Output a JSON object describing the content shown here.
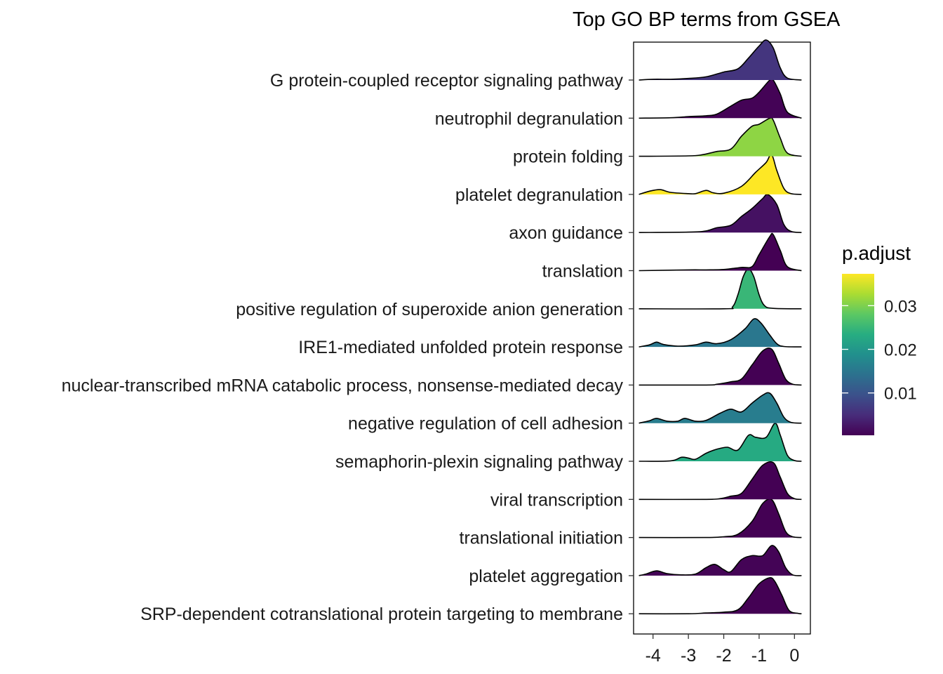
{
  "chart_data": {
    "type": "ridgeline",
    "title": "Top GO BP terms from GSEA",
    "xlabel": "",
    "ylabel": "",
    "xlim": [
      -4.55,
      0.45
    ],
    "x_ticks": [
      -4,
      -3,
      -2,
      -1,
      0
    ],
    "x_tick_labels": [
      "-4",
      "-3",
      "-2",
      "-1",
      "0"
    ],
    "legend": {
      "title": "p.adjust",
      "position": "right",
      "colormap": "viridis",
      "range": [
        0.0003,
        0.0373
      ],
      "ticks": [
        0.01,
        0.02,
        0.03
      ],
      "tick_labels": [
        "0.01",
        "0.02",
        "0.03"
      ]
    },
    "series": [
      {
        "name": "G protein-coupled receptor signaling pathway",
        "p_adjust": 0.006,
        "profile": [
          [
            -4.4,
            0
          ],
          [
            -4,
            0.02
          ],
          [
            -3.5,
            0.02
          ],
          [
            -3,
            0.04
          ],
          [
            -2.5,
            0.08
          ],
          [
            -2,
            0.2
          ],
          [
            -1.6,
            0.28
          ],
          [
            -1.3,
            0.55
          ],
          [
            -1,
            0.85
          ],
          [
            -0.8,
            1.0
          ],
          [
            -0.6,
            0.8
          ],
          [
            -0.4,
            0.3
          ],
          [
            -0.2,
            0.05
          ],
          [
            0.2,
            0
          ]
        ]
      },
      {
        "name": "neutrophil degranulation",
        "p_adjust": 0.0005,
        "profile": [
          [
            -4.4,
            0
          ],
          [
            -3.5,
            0.01
          ],
          [
            -3,
            0.04
          ],
          [
            -2.5,
            0.06
          ],
          [
            -2.2,
            0.1
          ],
          [
            -1.8,
            0.3
          ],
          [
            -1.5,
            0.45
          ],
          [
            -1.2,
            0.5
          ],
          [
            -1,
            0.65
          ],
          [
            -0.7,
            0.95
          ],
          [
            -0.6,
            0.95
          ],
          [
            -0.4,
            0.6
          ],
          [
            -0.2,
            0.15
          ],
          [
            0.2,
            0
          ]
        ]
      },
      {
        "name": "protein folding",
        "p_adjust": 0.031,
        "profile": [
          [
            -4.4,
            0
          ],
          [
            -3,
            0.01
          ],
          [
            -2.6,
            0.04
          ],
          [
            -2.2,
            0.12
          ],
          [
            -1.8,
            0.18
          ],
          [
            -1.5,
            0.5
          ],
          [
            -1.2,
            0.75
          ],
          [
            -1,
            0.8
          ],
          [
            -0.7,
            0.95
          ],
          [
            -0.6,
            0.9
          ],
          [
            -0.4,
            0.45
          ],
          [
            -0.2,
            0.08
          ],
          [
            0.2,
            0
          ]
        ]
      },
      {
        "name": "platelet degranulation",
        "p_adjust": 0.0373,
        "profile": [
          [
            -4.4,
            0
          ],
          [
            -4.1,
            0.08
          ],
          [
            -3.8,
            0.12
          ],
          [
            -3.5,
            0.05
          ],
          [
            -3,
            0.02
          ],
          [
            -2.8,
            0.02
          ],
          [
            -2.5,
            0.1
          ],
          [
            -2.3,
            0.04
          ],
          [
            -2,
            0.03
          ],
          [
            -1.5,
            0.2
          ],
          [
            -1.1,
            0.55
          ],
          [
            -0.8,
            0.8
          ],
          [
            -0.65,
            1.0
          ],
          [
            -0.5,
            0.6
          ],
          [
            -0.3,
            0.15
          ],
          [
            -0.1,
            0.02
          ],
          [
            0.2,
            0
          ]
        ]
      },
      {
        "name": "axon guidance",
        "p_adjust": 0.002,
        "profile": [
          [
            -4.4,
            0
          ],
          [
            -3,
            0.01
          ],
          [
            -2.5,
            0.04
          ],
          [
            -2.2,
            0.12
          ],
          [
            -1.8,
            0.18
          ],
          [
            -1.5,
            0.4
          ],
          [
            -1.2,
            0.6
          ],
          [
            -0.9,
            0.85
          ],
          [
            -0.75,
            0.95
          ],
          [
            -0.5,
            0.7
          ],
          [
            -0.3,
            0.2
          ],
          [
            -0.1,
            0.03
          ],
          [
            0.2,
            0
          ]
        ]
      },
      {
        "name": "translation",
        "p_adjust": 0.0003,
        "profile": [
          [
            -4.4,
            0
          ],
          [
            -3,
            0.02
          ],
          [
            -2.5,
            0.02
          ],
          [
            -2,
            0.03
          ],
          [
            -1.5,
            0.08
          ],
          [
            -1.2,
            0.1
          ],
          [
            -1,
            0.4
          ],
          [
            -0.7,
            0.85
          ],
          [
            -0.6,
            0.9
          ],
          [
            -0.4,
            0.5
          ],
          [
            -0.2,
            0.1
          ],
          [
            0.2,
            0
          ]
        ]
      },
      {
        "name": "positive regulation of superoxide anion generation",
        "p_adjust": 0.025,
        "profile": [
          [
            -4.4,
            0
          ],
          [
            -2,
            0
          ],
          [
            -1.75,
            0.05
          ],
          [
            -1.6,
            0.35
          ],
          [
            -1.45,
            0.8
          ],
          [
            -1.3,
            1.0
          ],
          [
            -1.15,
            0.8
          ],
          [
            -1.0,
            0.35
          ],
          [
            -0.85,
            0.08
          ],
          [
            -0.6,
            0.01
          ],
          [
            0.2,
            0
          ]
        ]
      },
      {
        "name": "IRE1-mediated unfolded protein response",
        "p_adjust": 0.015,
        "profile": [
          [
            -4.4,
            0
          ],
          [
            -4.1,
            0.05
          ],
          [
            -3.9,
            0.12
          ],
          [
            -3.7,
            0.06
          ],
          [
            -3.3,
            0.02
          ],
          [
            -2.8,
            0.05
          ],
          [
            -2.5,
            0.12
          ],
          [
            -2.2,
            0.08
          ],
          [
            -1.8,
            0.18
          ],
          [
            -1.4,
            0.45
          ],
          [
            -1.15,
            0.7
          ],
          [
            -0.95,
            0.6
          ],
          [
            -0.7,
            0.3
          ],
          [
            -0.5,
            0.08
          ],
          [
            -0.3,
            0.01
          ],
          [
            0.2,
            0
          ]
        ]
      },
      {
        "name": "nuclear-transcribed mRNA catabolic process, nonsense-mediated decay",
        "p_adjust": 0.0003,
        "profile": [
          [
            -4.4,
            0
          ],
          [
            -2.5,
            0
          ],
          [
            -2.2,
            0.02
          ],
          [
            -1.8,
            0.08
          ],
          [
            -1.5,
            0.15
          ],
          [
            -1.2,
            0.5
          ],
          [
            -0.9,
            0.85
          ],
          [
            -0.65,
            0.9
          ],
          [
            -0.45,
            0.55
          ],
          [
            -0.25,
            0.15
          ],
          [
            -0.05,
            0.02
          ],
          [
            0.2,
            0
          ]
        ]
      },
      {
        "name": "negative regulation of cell adhesion",
        "p_adjust": 0.016,
        "profile": [
          [
            -4.4,
            0
          ],
          [
            -4.1,
            0.06
          ],
          [
            -3.9,
            0.12
          ],
          [
            -3.6,
            0.05
          ],
          [
            -3.3,
            0.05
          ],
          [
            -3.1,
            0.12
          ],
          [
            -2.8,
            0.05
          ],
          [
            -2.5,
            0.07
          ],
          [
            -2.1,
            0.25
          ],
          [
            -1.8,
            0.35
          ],
          [
            -1.5,
            0.28
          ],
          [
            -1.2,
            0.5
          ],
          [
            -0.9,
            0.7
          ],
          [
            -0.7,
            0.75
          ],
          [
            -0.5,
            0.5
          ],
          [
            -0.3,
            0.15
          ],
          [
            -0.1,
            0.02
          ],
          [
            0.2,
            0
          ]
        ]
      },
      {
        "name": "semaphorin-plexin signaling pathway",
        "p_adjust": 0.023,
        "profile": [
          [
            -4.4,
            0
          ],
          [
            -3.5,
            0.01
          ],
          [
            -3.2,
            0.1
          ],
          [
            -3,
            0.08
          ],
          [
            -2.8,
            0.05
          ],
          [
            -2.5,
            0.2
          ],
          [
            -2.2,
            0.3
          ],
          [
            -1.9,
            0.35
          ],
          [
            -1.6,
            0.28
          ],
          [
            -1.3,
            0.65
          ],
          [
            -1.1,
            0.6
          ],
          [
            -0.8,
            0.6
          ],
          [
            -0.55,
            0.95
          ],
          [
            -0.4,
            0.65
          ],
          [
            -0.2,
            0.15
          ],
          [
            0,
            0.02
          ],
          [
            0.2,
            0
          ]
        ]
      },
      {
        "name": "viral transcription",
        "p_adjust": 0.0003,
        "profile": [
          [
            -4.4,
            0
          ],
          [
            -2.5,
            0
          ],
          [
            -2.1,
            0.02
          ],
          [
            -1.8,
            0.08
          ],
          [
            -1.5,
            0.15
          ],
          [
            -1.2,
            0.5
          ],
          [
            -0.9,
            0.85
          ],
          [
            -0.6,
            0.92
          ],
          [
            -0.4,
            0.55
          ],
          [
            -0.2,
            0.15
          ],
          [
            0,
            0.02
          ],
          [
            0.2,
            0
          ]
        ]
      },
      {
        "name": "translational initiation",
        "p_adjust": 0.0003,
        "profile": [
          [
            -4.4,
            0
          ],
          [
            -2.5,
            0
          ],
          [
            -2,
            0.02
          ],
          [
            -1.6,
            0.08
          ],
          [
            -1.2,
            0.4
          ],
          [
            -0.9,
            0.85
          ],
          [
            -0.65,
            0.95
          ],
          [
            -0.45,
            0.6
          ],
          [
            -0.25,
            0.15
          ],
          [
            -0.05,
            0.02
          ],
          [
            0.2,
            0
          ]
        ]
      },
      {
        "name": "platelet aggregation",
        "p_adjust": 0.0006,
        "profile": [
          [
            -4.4,
            0
          ],
          [
            -4.2,
            0.04
          ],
          [
            -3.9,
            0.12
          ],
          [
            -3.6,
            0.05
          ],
          [
            -3.2,
            0.02
          ],
          [
            -2.8,
            0.04
          ],
          [
            -2.5,
            0.2
          ],
          [
            -2.25,
            0.28
          ],
          [
            -2,
            0.15
          ],
          [
            -1.8,
            0.1
          ],
          [
            -1.5,
            0.4
          ],
          [
            -1.2,
            0.5
          ],
          [
            -0.9,
            0.5
          ],
          [
            -0.65,
            0.75
          ],
          [
            -0.45,
            0.6
          ],
          [
            -0.25,
            0.2
          ],
          [
            -0.05,
            0.02
          ],
          [
            0.2,
            0
          ]
        ]
      },
      {
        "name": "SRP-dependent cotranslational protein targeting to membrane",
        "p_adjust": 0.0003,
        "profile": [
          [
            -4.4,
            0
          ],
          [
            -3,
            0
          ],
          [
            -2.5,
            0.02
          ],
          [
            -2,
            0.04
          ],
          [
            -1.6,
            0.1
          ],
          [
            -1.3,
            0.4
          ],
          [
            -1,
            0.75
          ],
          [
            -0.7,
            0.9
          ],
          [
            -0.55,
            0.8
          ],
          [
            -0.35,
            0.45
          ],
          [
            -0.15,
            0.08
          ],
          [
            0.1,
            0.01
          ],
          [
            0.2,
            0
          ]
        ]
      }
    ]
  }
}
